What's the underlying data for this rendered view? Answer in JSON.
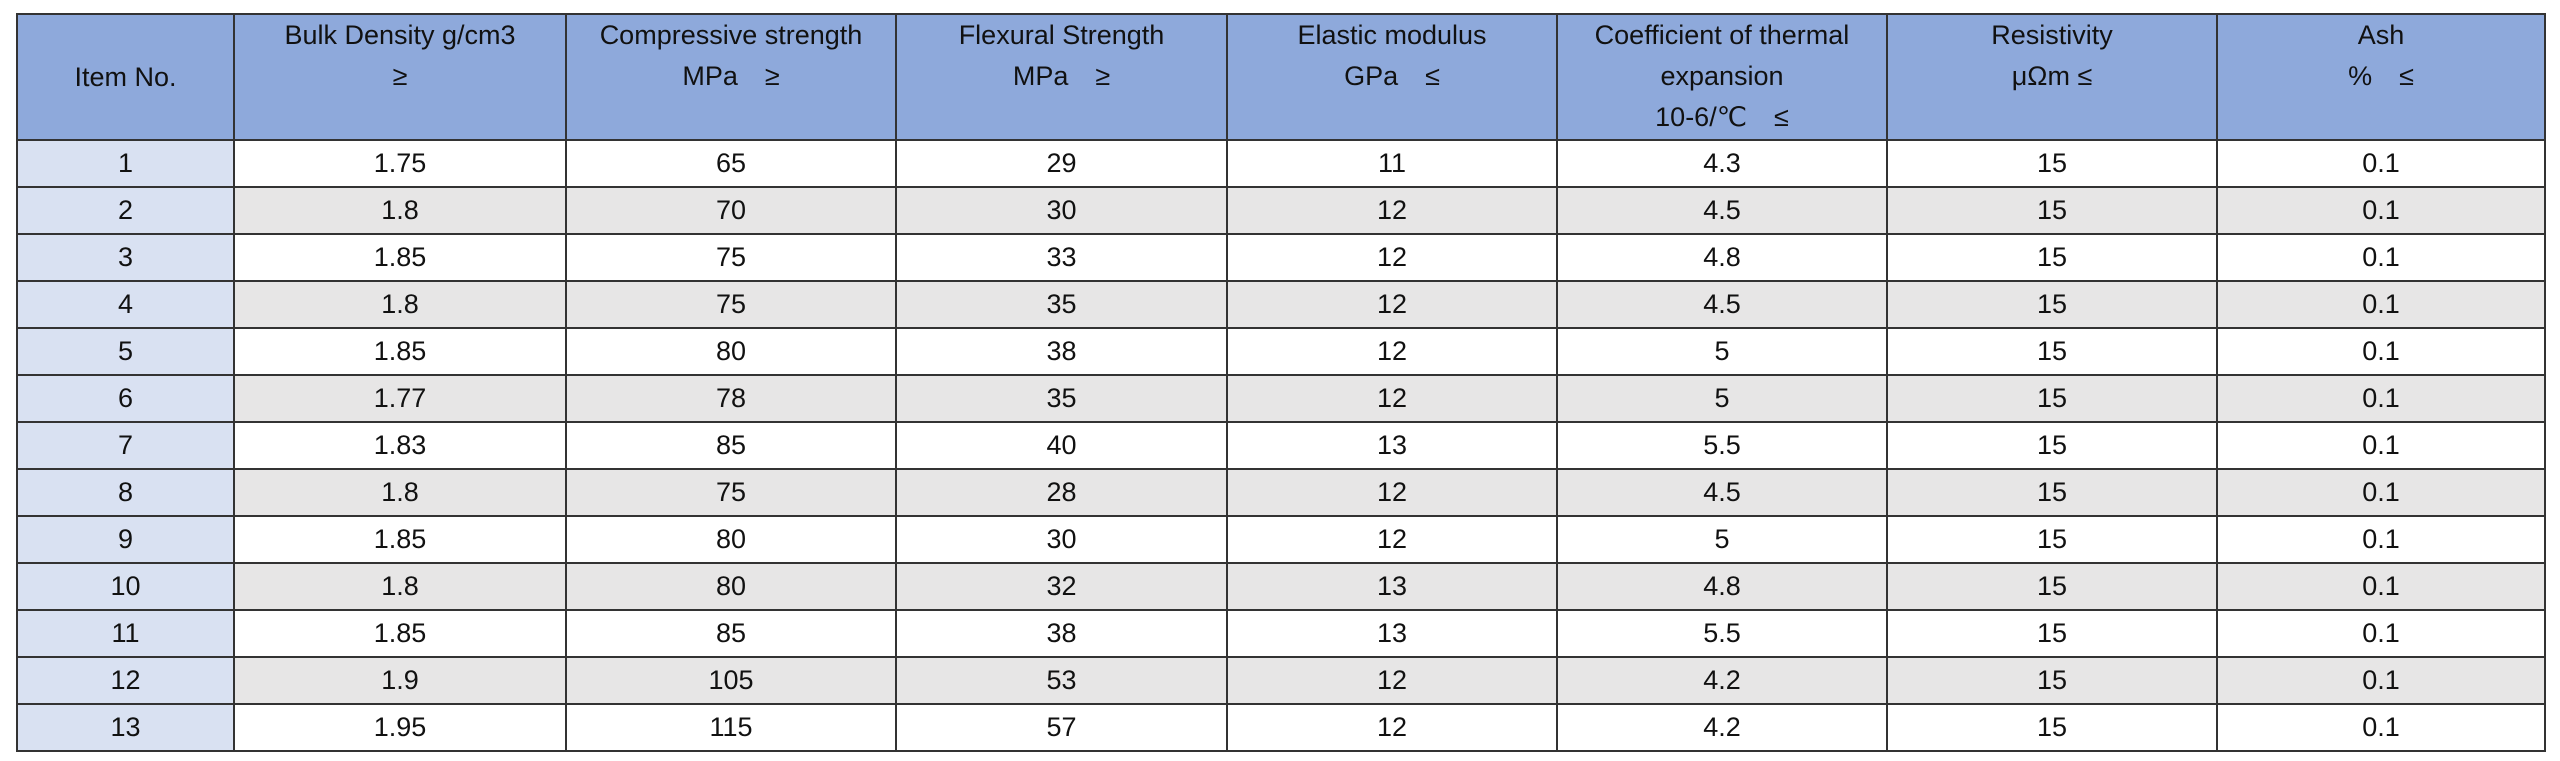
{
  "table": {
    "headers": [
      [
        "Item No."
      ],
      [
        "Bulk Density g/cm3",
        "≥"
      ],
      [
        "Compressive strength",
        "MPa　≥"
      ],
      [
        "Flexural Strength",
        "MPa　≥"
      ],
      [
        "Elastic modulus",
        "GPa　≤"
      ],
      [
        "Coefficient of thermal",
        "expansion",
        "10-6/℃　≤"
      ],
      [
        "Resistivity",
        "μΩm ≤"
      ],
      [
        "Ash",
        "%　≤"
      ]
    ],
    "rows": [
      [
        "1",
        "1.75",
        "65",
        "29",
        "11",
        "4.3",
        "15",
        "0.1"
      ],
      [
        "2",
        "1.8",
        "70",
        "30",
        "12",
        "4.5",
        "15",
        "0.1"
      ],
      [
        "3",
        "1.85",
        "75",
        "33",
        "12",
        "4.8",
        "15",
        "0.1"
      ],
      [
        "4",
        "1.8",
        "75",
        "35",
        "12",
        "4.5",
        "15",
        "0.1"
      ],
      [
        "5",
        "1.85",
        "80",
        "38",
        "12",
        "5",
        "15",
        "0.1"
      ],
      [
        "6",
        "1.77",
        "78",
        "35",
        "12",
        "5",
        "15",
        "0.1"
      ],
      [
        "7",
        "1.83",
        "85",
        "40",
        "13",
        "5.5",
        "15",
        "0.1"
      ],
      [
        "8",
        "1.8",
        "75",
        "28",
        "12",
        "4.5",
        "15",
        "0.1"
      ],
      [
        "9",
        "1.85",
        "80",
        "30",
        "12",
        "5",
        "15",
        "0.1"
      ],
      [
        "10",
        "1.8",
        "80",
        "32",
        "13",
        "4.8",
        "15",
        "0.1"
      ],
      [
        "11",
        "1.85",
        "85",
        "38",
        "13",
        "5.5",
        "15",
        "0.1"
      ],
      [
        "12",
        "1.9",
        "105",
        "53",
        "12",
        "4.2",
        "15",
        "0.1"
      ],
      [
        "13",
        "1.95",
        "115",
        "57",
        "12",
        "4.2",
        "15",
        "0.1"
      ]
    ]
  }
}
